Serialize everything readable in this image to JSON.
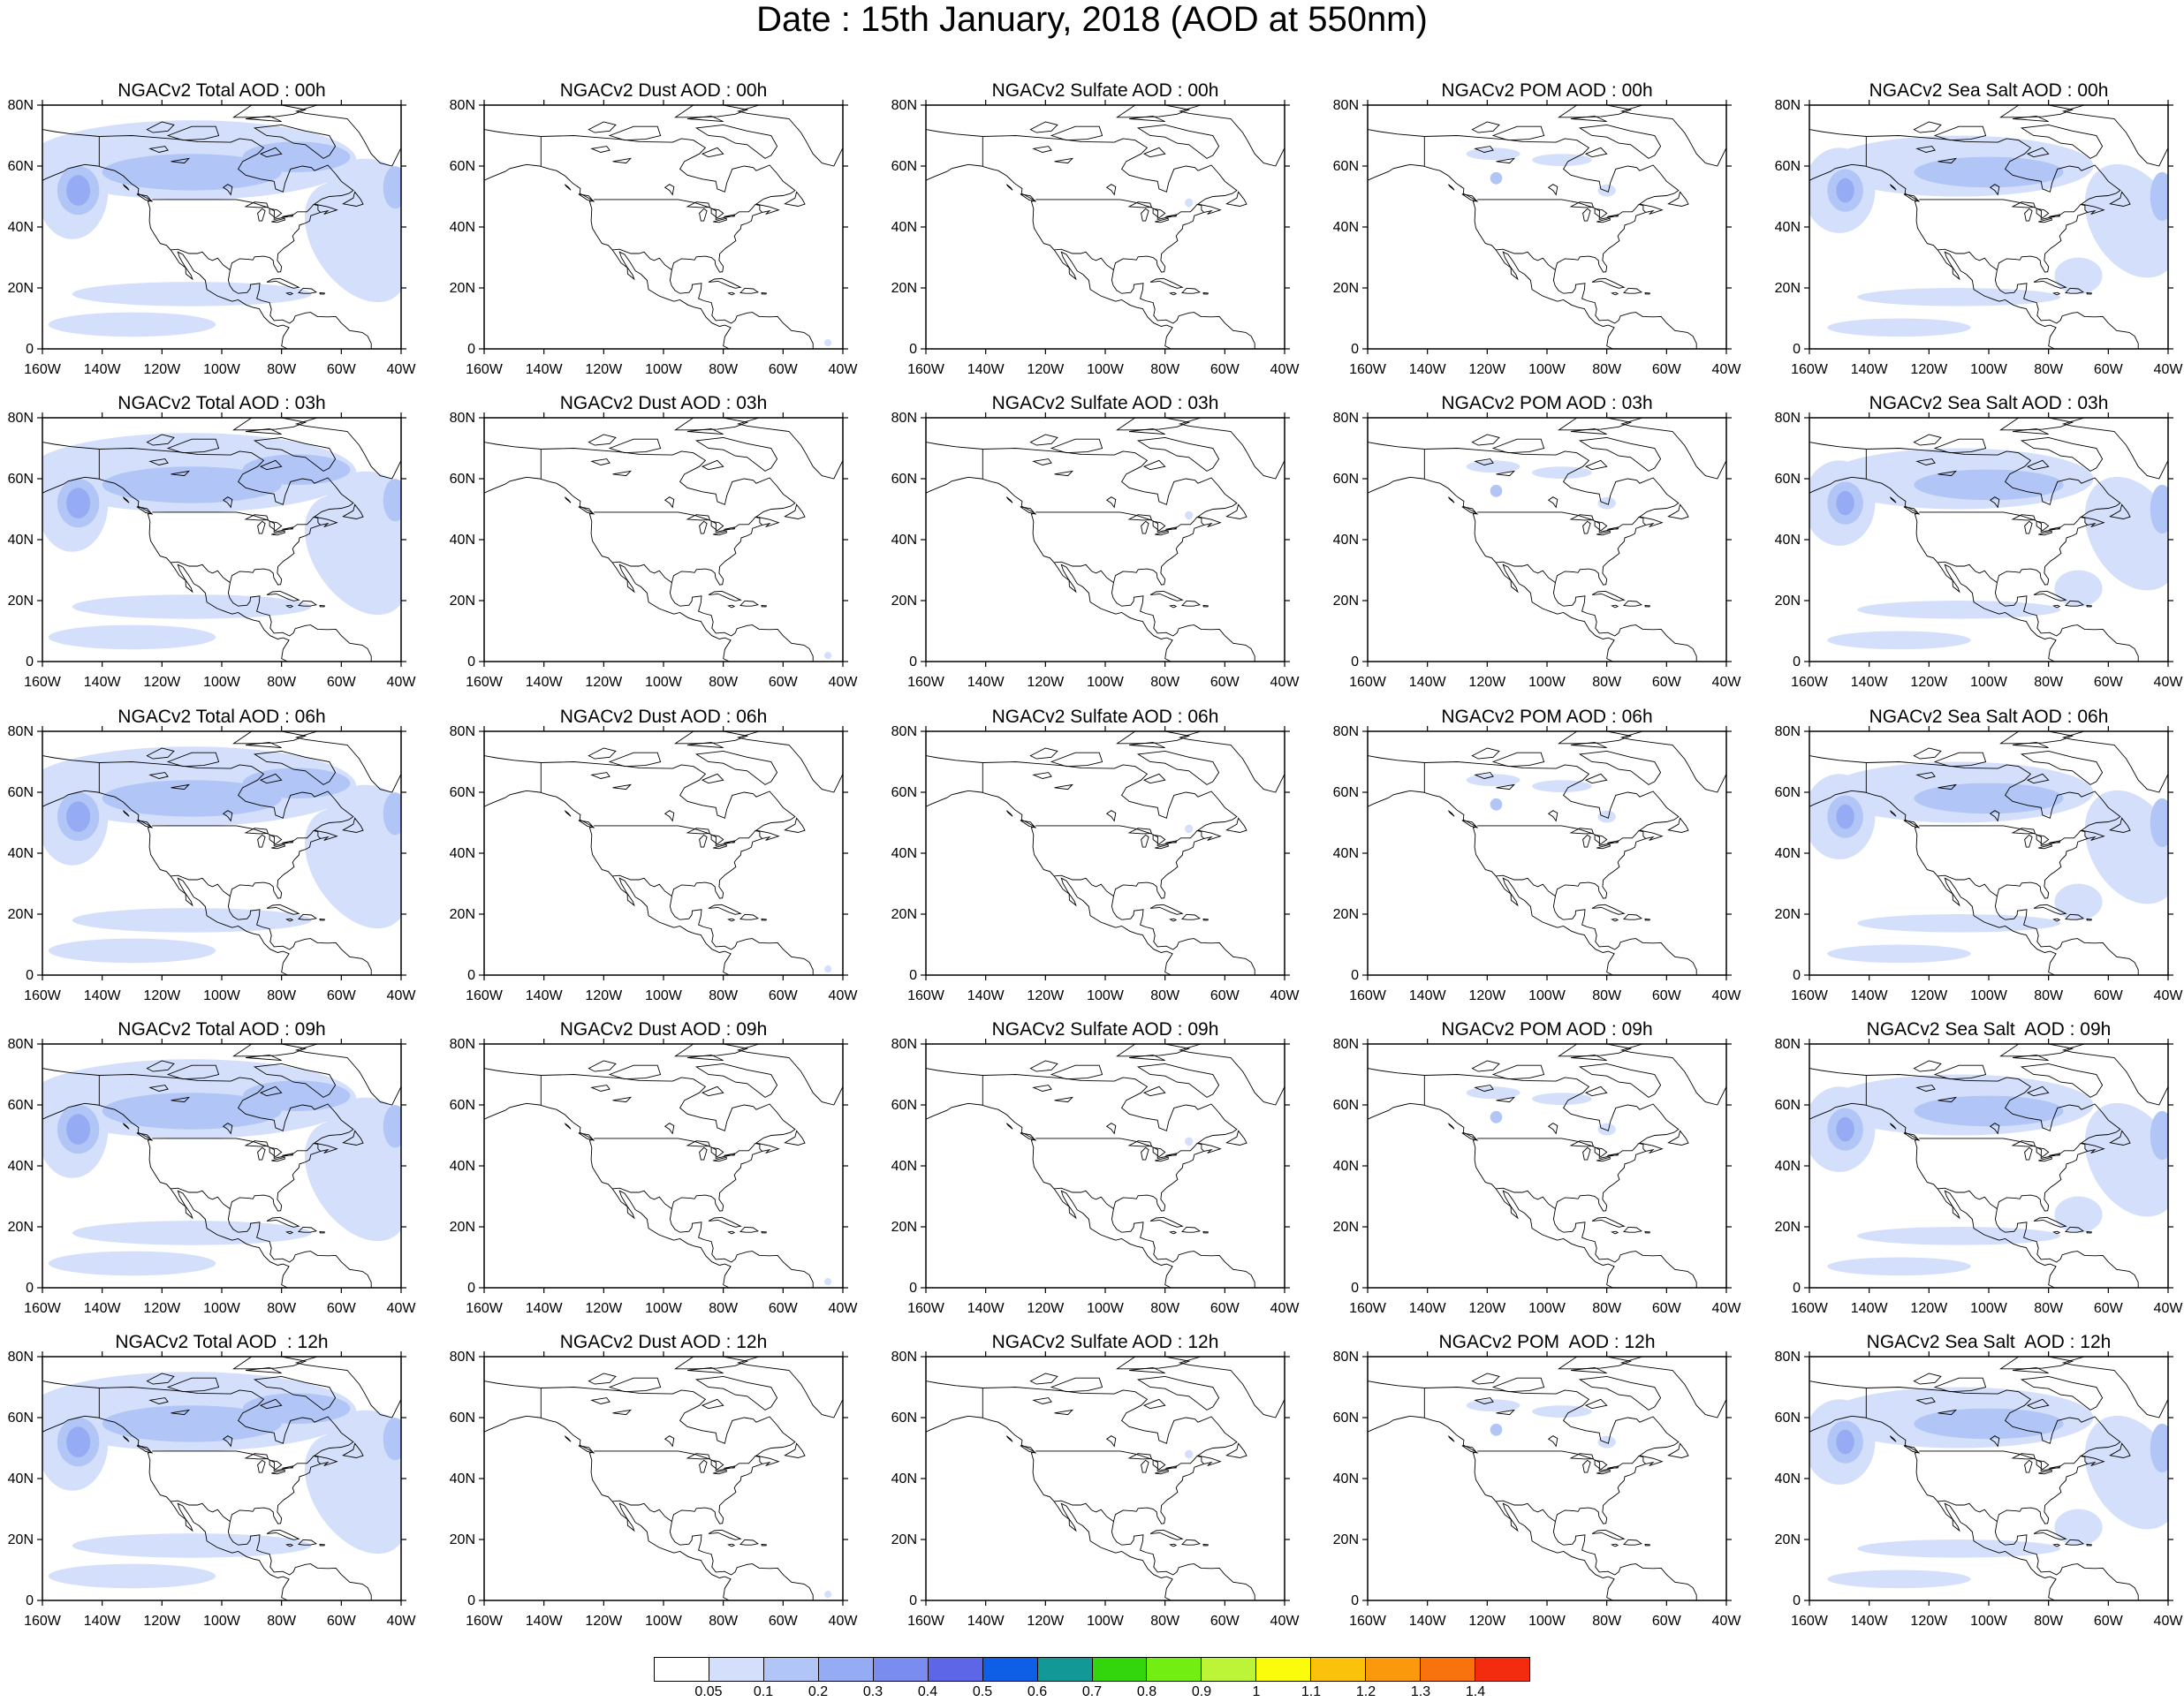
{
  "title": "Date : 15th January, 2018 (AOD at 550nm)",
  "axes": {
    "lon_ticks": [
      "160W",
      "140W",
      "120W",
      "100W",
      "80W",
      "60W",
      "40W"
    ],
    "lat_ticks": [
      "80N",
      "60N",
      "40N",
      "20N",
      "0"
    ],
    "lon_range": [
      -160,
      -40
    ],
    "lat_range": [
      0,
      80
    ]
  },
  "row_titles": [
    [
      "NGACv2 Total AOD : 00h",
      "NGACv2 Dust AOD : 00h",
      "NGACv2 Sulfate AOD : 00h",
      "NGACv2 POM AOD : 00h",
      "NGACv2 Sea Salt AOD : 00h"
    ],
    [
      "NGACv2 Total AOD : 03h",
      "NGACv2 Dust AOD : 03h",
      "NGACv2 Sulfate AOD : 03h",
      "NGACv2 POM AOD : 03h",
      "NGACv2 Sea Salt AOD : 03h"
    ],
    [
      "NGACv2 Total AOD : 06h",
      "NGACv2 Dust AOD : 06h",
      "NGACv2 Sulfate AOD : 06h",
      "NGACv2 POM AOD : 06h",
      "NGACv2 Sea Salt AOD : 06h"
    ],
    [
      "NGACv2 Total AOD : 09h",
      "NGACv2 Dust AOD : 09h",
      "NGACv2 Sulfate AOD : 09h",
      "NGACv2 POM AOD : 09h",
      "NGACv2 Sea Salt  AOD : 09h"
    ],
    [
      "NGACv2 Total AOD  : 12h",
      "NGACv2 Dust AOD : 12h",
      "NGACv2 Sulfate AOD : 12h",
      "NGACv2 POM  AOD : 12h",
      "NGACv2 Sea Salt  AOD : 12h"
    ]
  ],
  "colorbar": {
    "labels": [
      "0.05",
      "0.1",
      "0.2",
      "0.3",
      "0.4",
      "0.5",
      "0.6",
      "0.7",
      "0.8",
      "0.9",
      "1",
      "1.1",
      "1.2",
      "1.3",
      "1.4"
    ],
    "colors": [
      "#ffffff",
      "#d4e0fb",
      "#b1c5f6",
      "#95acf4",
      "#7a8cee",
      "#5c66e6",
      "#0f5fe6",
      "#129896",
      "#33d60d",
      "#73ee12",
      "#bcf438",
      "#fbfb0c",
      "#fbc20b",
      "#fb990c",
      "#f8720e",
      "#f32c0f"
    ]
  }
}
